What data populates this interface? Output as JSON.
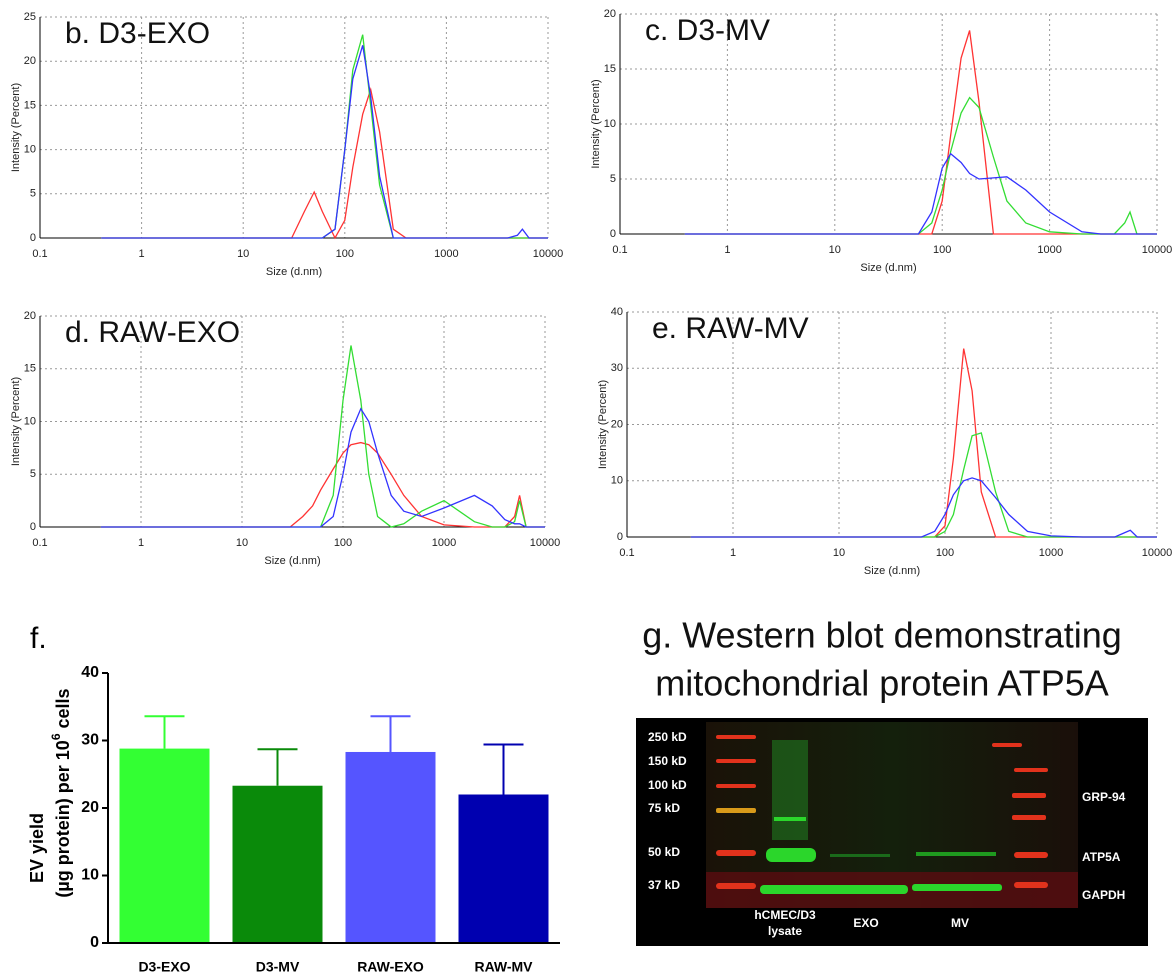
{
  "chart_data": [
    {
      "type": "line",
      "title": "b. D3-EXO",
      "xlabel": "Size (d.nm)",
      "ylabel": "Intensity (Percent)",
      "log_x": true,
      "grid": true,
      "x": [
        0.4,
        10,
        30,
        40,
        50,
        60,
        80,
        100,
        120,
        150,
        180,
        220,
        300,
        400,
        600,
        1000,
        2000,
        3000,
        4000,
        5000,
        5600,
        6500,
        10000
      ],
      "xlim": [
        0.1,
        10000
      ],
      "xticks": [
        0.1,
        1,
        10,
        100,
        1000,
        10000
      ],
      "ylim": [
        0,
        25
      ],
      "yticks": [
        0,
        5,
        10,
        15,
        20,
        25
      ],
      "series": [
        {
          "color": "#ff3333",
          "values": [
            0,
            0,
            0,
            3,
            5.2,
            3,
            0,
            2,
            8,
            14,
            16.8,
            12,
            1,
            0,
            0,
            0,
            0,
            0,
            0,
            0,
            0,
            0,
            0
          ]
        },
        {
          "color": "#33dd33",
          "values": [
            0,
            0,
            0,
            0,
            0,
            0,
            1,
            10,
            19,
            23,
            15,
            6,
            0,
            0,
            0,
            0,
            0,
            0,
            0,
            0,
            0,
            0,
            0
          ]
        },
        {
          "color": "#3333ff",
          "values": [
            0,
            0,
            0,
            0,
            0,
            0,
            1,
            10,
            18,
            21.8,
            16,
            7,
            0,
            0,
            0,
            0,
            0,
            0,
            0,
            0.3,
            1,
            0,
            0
          ]
        }
      ]
    },
    {
      "type": "line",
      "title": "c. D3-MV",
      "xlabel": "Size (d.nm)",
      "ylabel": "Intensity (Percent)",
      "log_x": true,
      "grid": true,
      "x": [
        0.4,
        10,
        30,
        40,
        50,
        60,
        80,
        100,
        120,
        150,
        180,
        220,
        300,
        400,
        600,
        1000,
        2000,
        3000,
        4000,
        5000,
        5600,
        6500,
        10000
      ],
      "xlim": [
        0.1,
        10000
      ],
      "xticks": [
        0.1,
        1,
        10,
        100,
        1000,
        10000
      ],
      "ylim": [
        0,
        20
      ],
      "yticks": [
        0,
        5,
        10,
        15,
        20
      ],
      "series": [
        {
          "color": "#ff3333",
          "values": [
            0,
            0,
            0,
            0,
            0,
            0,
            0,
            3,
            9,
            16,
            18.5,
            12,
            0,
            0,
            0,
            0,
            0,
            0,
            0,
            0,
            0,
            0,
            0
          ]
        },
        {
          "color": "#33dd33",
          "values": [
            0,
            0,
            0,
            0,
            0,
            0,
            1,
            4,
            7.5,
            11,
            12.4,
            11.5,
            7,
            3,
            1,
            0.2,
            0,
            0,
            0,
            1,
            2,
            0,
            0
          ]
        },
        {
          "color": "#3333ff",
          "values": [
            0,
            0,
            0,
            0,
            0,
            0,
            2,
            6,
            7.3,
            6.5,
            5.5,
            5,
            5.1,
            5.2,
            4,
            2,
            0.2,
            0,
            0,
            0,
            0,
            0,
            0
          ]
        }
      ]
    },
    {
      "type": "line",
      "title": "d. RAW-EXO",
      "xlabel": "Size (d.nm)",
      "ylabel": "Intensity (Percent)",
      "log_x": true,
      "grid": true,
      "x": [
        0.4,
        10,
        30,
        40,
        50,
        60,
        80,
        100,
        120,
        150,
        180,
        220,
        300,
        400,
        600,
        1000,
        2000,
        3000,
        4000,
        5000,
        5600,
        6500,
        10000
      ],
      "xlim": [
        0.1,
        10000
      ],
      "xticks": [
        0.1,
        1,
        10,
        100,
        1000,
        10000
      ],
      "ylim": [
        0,
        20
      ],
      "yticks": [
        0,
        5,
        10,
        15,
        20
      ],
      "series": [
        {
          "color": "#ff3333",
          "values": [
            0,
            0,
            0,
            1,
            2,
            3.5,
            5.5,
            7,
            7.8,
            8,
            7.8,
            7,
            5,
            3,
            1,
            0.2,
            0,
            0,
            0,
            1,
            3,
            0,
            0
          ]
        },
        {
          "color": "#33dd33",
          "values": [
            0,
            0,
            0,
            0,
            0,
            0,
            3,
            12,
            17.2,
            12,
            5,
            1,
            0,
            0.3,
            1.5,
            2.5,
            0.5,
            0,
            0,
            0.5,
            2.5,
            0,
            0
          ]
        },
        {
          "color": "#3333ff",
          "values": [
            0,
            0,
            0,
            0,
            0,
            0,
            1,
            5,
            9,
            11.2,
            10,
            7,
            3,
            1.5,
            1,
            1.8,
            3,
            2,
            0.7,
            0.3,
            0.3,
            0,
            0
          ]
        }
      ]
    },
    {
      "type": "line",
      "title": "e. RAW-MV",
      "xlabel": "Size (d.nm)",
      "ylabel": "Intensity (Percent)",
      "log_x": true,
      "grid": true,
      "x": [
        0.4,
        10,
        30,
        40,
        50,
        60,
        80,
        100,
        120,
        150,
        180,
        220,
        300,
        400,
        600,
        1000,
        2000,
        3000,
        4000,
        5000,
        5600,
        6500,
        10000
      ],
      "xlim": [
        0.1,
        10000
      ],
      "xticks": [
        0.1,
        1,
        10,
        100,
        1000,
        10000
      ],
      "ylim": [
        0,
        40
      ],
      "yticks": [
        0,
        10,
        20,
        30,
        40
      ],
      "series": [
        {
          "color": "#ff3333",
          "values": [
            0,
            0,
            0,
            0,
            0,
            0,
            0,
            2,
            14,
            33.5,
            26,
            8,
            0,
            0,
            0,
            0,
            0,
            0,
            0,
            0,
            0,
            0,
            0
          ]
        },
        {
          "color": "#33dd33",
          "values": [
            0,
            0,
            0,
            0,
            0,
            0,
            0,
            1,
            4,
            12,
            18,
            18.5,
            8,
            1,
            0,
            0,
            0,
            0,
            0,
            0,
            0,
            0,
            0
          ]
        },
        {
          "color": "#3333ff",
          "values": [
            0,
            0,
            0,
            0,
            0,
            0,
            1,
            4,
            7.5,
            10,
            10.5,
            10,
            7,
            4,
            1,
            0.2,
            0,
            0,
            0,
            0.8,
            1.2,
            0,
            0
          ]
        }
      ]
    },
    {
      "type": "bar",
      "label": "f.",
      "ylabel": {
        "lines": [
          "EV yield",
          "(µg protein) per 10"
        ],
        "superscript": "6",
        "suffix": "cells"
      },
      "categories": [
        "D3-EXO",
        "D3-MV",
        "RAW-EXO",
        "RAW-MV"
      ],
      "values": [
        28.8,
        23.3,
        28.3,
        22.0
      ],
      "errors": [
        4.8,
        5.4,
        5.3,
        7.4
      ],
      "colors": [
        "#33ff33",
        "#0a8a0a",
        "#5555ff",
        "#0000b0"
      ],
      "ylim": [
        0,
        40
      ],
      "yticks": [
        0,
        10,
        20,
        30,
        40
      ]
    }
  ],
  "blot": {
    "title": [
      "g. Western blot demonstrating",
      "mitochondrial protein ATP5A"
    ],
    "markers": [
      "250 kD",
      "150 kD",
      "100 kD",
      "75 kD",
      "50 kD",
      "37 kD"
    ],
    "proteins": [
      "GRP-94",
      "ATP5A",
      "GAPDH"
    ],
    "lanes": [
      "hCMEC/D3",
      "lysate",
      "EXO",
      "MV"
    ]
  }
}
